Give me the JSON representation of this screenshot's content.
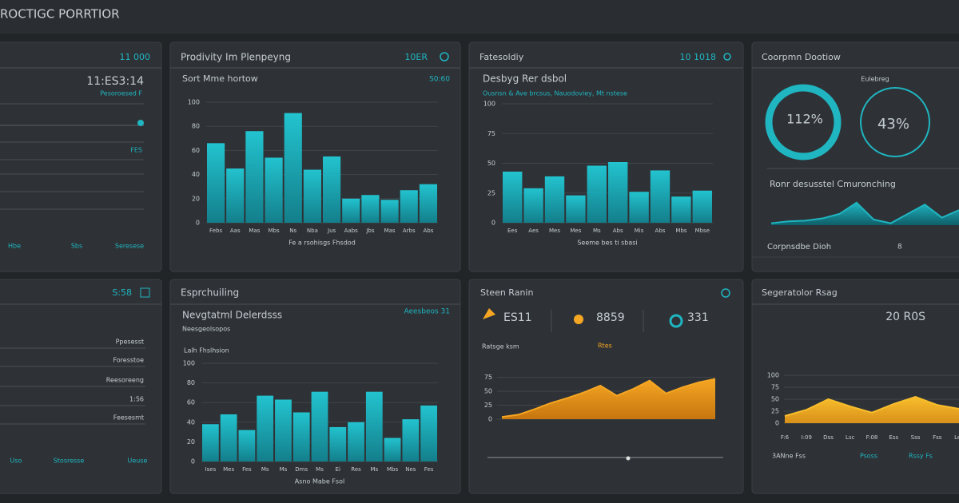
{
  "header": {
    "title": "ROCTIGC PORRTIOR"
  },
  "panels": [
    {
      "badge": "11 000",
      "value": "11:ES3:14",
      "note": "Pesoroesed F",
      "items": [
        "FES"
      ],
      "footer": [
        "Hbe",
        "Sbs",
        "Seresese"
      ]
    },
    {
      "title": "Prodivity Im Plenpeyng",
      "badge": "10ER",
      "subtitle": "Sort Mme hortow",
      "badge2": "S0:60",
      "chart": {
        "type": "bar",
        "categories": [
          "Febs",
          "Aas",
          "Mas",
          "Mbs",
          "Ns",
          "Nba",
          "Jus",
          "Aabs",
          "Jbs",
          "Mas",
          "Arbs",
          "Abs"
        ],
        "values": [
          66,
          45,
          76,
          54,
          91,
          44,
          55,
          20,
          23,
          19,
          27,
          32
        ],
        "ylim": [
          0,
          100
        ],
        "yticks": [
          0,
          20,
          40,
          60,
          80,
          100
        ],
        "xlabel": "Fe a rsohisgs Fhsdod"
      }
    },
    {
      "title": "Fatesoldiy",
      "badge": "10 1018",
      "subtitle": "Desbyg Rer dsbol",
      "legend": "Ousnsn & Ave brcsus, Nauodoviey, Mt nstese",
      "chart": {
        "type": "bar",
        "categories": [
          "Ees",
          "Aes",
          "Mes",
          "Mes",
          "Ms",
          "Abs",
          "Mis",
          "Abs",
          "Mbs",
          "Mbse"
        ],
        "values": [
          43,
          29,
          39,
          23,
          48,
          51,
          26,
          44,
          22,
          27
        ],
        "ylim": [
          0,
          100
        ],
        "yticks": [
          0,
          25,
          50,
          75,
          100
        ],
        "xlabel": "Seeme bes ti sbasi"
      }
    },
    {
      "title": "Coorpmn Dootiow",
      "ring_label": "Eulebreg",
      "rings": [
        "112%",
        "43%"
      ],
      "subtitle": "Ronr desusstel Cmuronching",
      "chart": {
        "type": "area",
        "values": [
          5,
          10,
          12,
          18,
          30,
          60,
          15,
          5,
          30,
          55,
          20,
          40
        ],
        "ylim": [
          0,
          100
        ]
      },
      "footer": [
        "Corpnsdbe Dioh",
        "8"
      ]
    },
    {
      "badge": "S:58",
      "items": [
        "Ppesesst",
        "Foresstoe",
        "Reesoreeng",
        "1:56",
        "Feesesmt"
      ],
      "footer": [
        "Uso",
        "Stosresse",
        "Ueuse"
      ]
    },
    {
      "title": "Esprchuiling",
      "subtitle": "Nevgtatml Delerdsss",
      "badge": "Aeesbeos 31",
      "note": "Neesgeolsopos",
      "chart_title": "Lalh Fhslhsion",
      "chart": {
        "type": "bar",
        "categories": [
          "Ises",
          "Mes",
          "Fes",
          "Ms",
          "Ms",
          "Dms",
          "Ms",
          "Ei",
          "Res",
          "Ms",
          "Mbs",
          "Nes",
          "Fes"
        ],
        "values": [
          38,
          48,
          32,
          67,
          63,
          50,
          71,
          35,
          40,
          71,
          24,
          43,
          57
        ],
        "ylim": [
          0,
          100
        ],
        "yticks": [
          0,
          20,
          40,
          60,
          80,
          100
        ],
        "xlabel": "Asno Mabe Fsol"
      }
    },
    {
      "title": "Steen Ranin",
      "kpis": [
        "ES11",
        "8859",
        "331"
      ],
      "note": "Ratsge ksm",
      "badge": "Rtes",
      "chart": {
        "type": "area",
        "values": [
          4,
          8,
          18,
          29,
          38,
          48,
          60,
          42,
          54,
          69,
          46,
          57,
          66,
          72
        ],
        "ylim": [
          0,
          100
        ],
        "yticks": [
          0,
          25,
          50,
          75
        ]
      }
    },
    {
      "title": "Segeratolor Rsag",
      "value": "20 R0S",
      "chart": {
        "type": "area",
        "categories": [
          "F:6",
          "I:09",
          "Dss",
          "Lsc",
          "F:08",
          "Ess",
          "Sss",
          "Fss",
          "Les"
        ],
        "values": [
          15,
          28,
          50,
          35,
          22,
          40,
          55,
          38,
          30
        ],
        "ylim": [
          0,
          100
        ],
        "yticks": [
          0,
          25,
          50,
          75,
          100
        ]
      },
      "footer": [
        "3ANne Fss",
        "Psoss",
        "Rssy Fs"
      ]
    }
  ]
}
